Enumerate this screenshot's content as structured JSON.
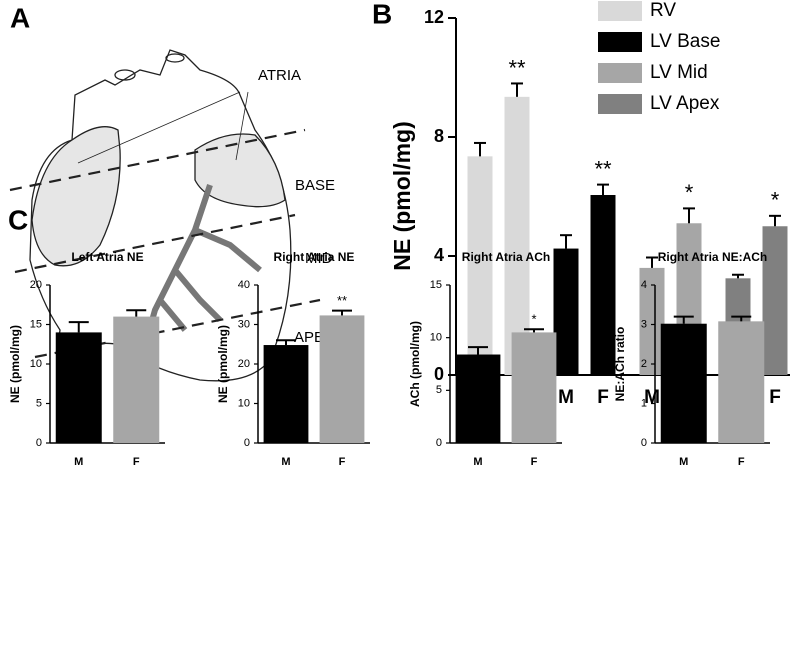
{
  "panel_a": {
    "label": "A",
    "atria": "ATRIA",
    "base": "BASE",
    "mid": "MID",
    "apex": "APEX"
  },
  "chart_data": [
    {
      "type": "bar",
      "panel_label": "B",
      "ylabel": "NE (pmol/mg)",
      "categories": [
        "M",
        "F"
      ],
      "ylim": [
        0,
        12
      ],
      "yticks": [
        0,
        4,
        8,
        12
      ],
      "series": [
        {
          "name": "RV",
          "color": "#d9d9d9",
          "values": [
            7.35,
            9.35
          ],
          "errors": [
            0.45,
            0.45
          ],
          "annotations": [
            null,
            "**"
          ]
        },
        {
          "name": "LV Base",
          "color": "#000000",
          "values": [
            4.25,
            6.05
          ],
          "errors": [
            0.45,
            0.35
          ],
          "annotations": [
            null,
            "**"
          ]
        },
        {
          "name": "LV Mid",
          "color": "#a6a6a6",
          "values": [
            3.6,
            5.1
          ],
          "errors": [
            0.35,
            0.5
          ],
          "annotations": [
            null,
            "*"
          ]
        },
        {
          "name": "LV Apex",
          "color": "#808080",
          "values": [
            3.25,
            5.0
          ],
          "errors": [
            0.12,
            0.35
          ],
          "annotations": [
            null,
            "*"
          ]
        }
      ]
    },
    {
      "type": "bar",
      "panel_label": "C",
      "title": "Left Atria NE",
      "ylabel": "NE (pmol/mg)",
      "categories": [
        "M",
        "F"
      ],
      "colors": [
        "#000000",
        "#a6a6a6"
      ],
      "values": [
        14,
        16
      ],
      "errors": [
        1.3,
        0.8
      ],
      "ylim": [
        0,
        20
      ],
      "yticks": [
        0,
        5,
        10,
        15,
        20
      ]
    },
    {
      "type": "bar",
      "title": "Right Atria NE",
      "ylabel": "NE (pmol/mg)",
      "categories": [
        "M",
        "F"
      ],
      "colors": [
        "#000000",
        "#a6a6a6"
      ],
      "values": [
        24.8,
        32.3
      ],
      "errors": [
        1.2,
        1.2
      ],
      "annotations": [
        null,
        "**"
      ],
      "ylim": [
        0,
        40
      ],
      "yticks": [
        0,
        10,
        20,
        30,
        40
      ]
    },
    {
      "type": "bar",
      "title": "Right Atria ACh",
      "ylabel": "ACh (pmol/mg)",
      "categories": [
        "M",
        "F"
      ],
      "colors": [
        "#000000",
        "#a6a6a6"
      ],
      "values": [
        8.4,
        10.5
      ],
      "errors": [
        0.7,
        0.3
      ],
      "annotations": [
        null,
        "*"
      ],
      "ylim": [
        0,
        15
      ],
      "yticks": [
        0,
        5,
        10,
        15
      ]
    },
    {
      "type": "bar",
      "title": "Right Atria NE:ACh",
      "ylabel": "NE:ACh ratio",
      "categories": [
        "M",
        "F"
      ],
      "colors": [
        "#000000",
        "#a6a6a6"
      ],
      "values": [
        3.02,
        3.08
      ],
      "errors": [
        0.18,
        0.12
      ],
      "ylim": [
        0,
        4
      ],
      "yticks": [
        0,
        1,
        2,
        3,
        4
      ]
    }
  ]
}
